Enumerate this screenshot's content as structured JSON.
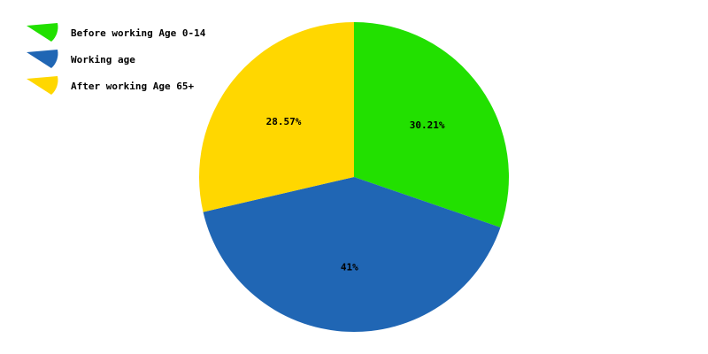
{
  "chart_data": {
    "type": "pie",
    "categories": [
      "Before working Age 0-14",
      "Working age",
      "After working Age 65+"
    ],
    "values": [
      30.21,
      41,
      28.57
    ],
    "value_labels": [
      "30.21%",
      "41%",
      "28.57%"
    ],
    "colors": [
      "#22e000",
      "#2066b4",
      "#ffd700"
    ],
    "start_angle_deg": 90,
    "direction": "clockwise",
    "legend_position": "top-left",
    "title": "",
    "xlabel": "",
    "ylabel": ""
  }
}
